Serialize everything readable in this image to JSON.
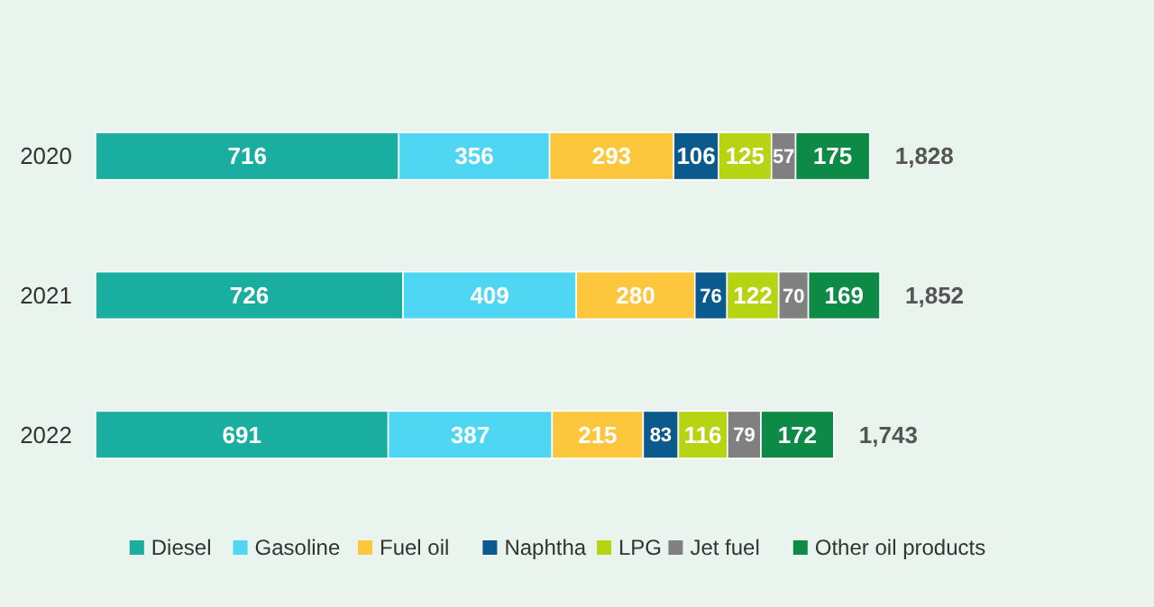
{
  "chart_data": {
    "type": "bar",
    "orientation": "horizontal",
    "stacked": true,
    "categories": [
      "2020",
      "2021",
      "2022"
    ],
    "series": [
      {
        "name": "Diesel",
        "color": "#1aaea0",
        "values": [
          716,
          726,
          691
        ]
      },
      {
        "name": "Gasoline",
        "color": "#4fd6f2",
        "values": [
          356,
          409,
          387
        ]
      },
      {
        "name": "Fuel oil",
        "color": "#fcc73c",
        "values": [
          293,
          280,
          215
        ]
      },
      {
        "name": "Naphtha",
        "color": "#0b5a8e",
        "values": [
          106,
          76,
          83
        ]
      },
      {
        "name": "LPG",
        "color": "#b6d411",
        "values": [
          125,
          122,
          116
        ]
      },
      {
        "name": "Jet fuel",
        "color": "#808080",
        "values": [
          57,
          70,
          79
        ]
      },
      {
        "name": "Other oil products",
        "color": "#0e8a47",
        "values": [
          175,
          169,
          172
        ]
      }
    ],
    "totals": [
      "1,828",
      "1,852",
      "1,743"
    ],
    "data_labels": true,
    "legend": "bottom",
    "tick_labels": "y"
  }
}
